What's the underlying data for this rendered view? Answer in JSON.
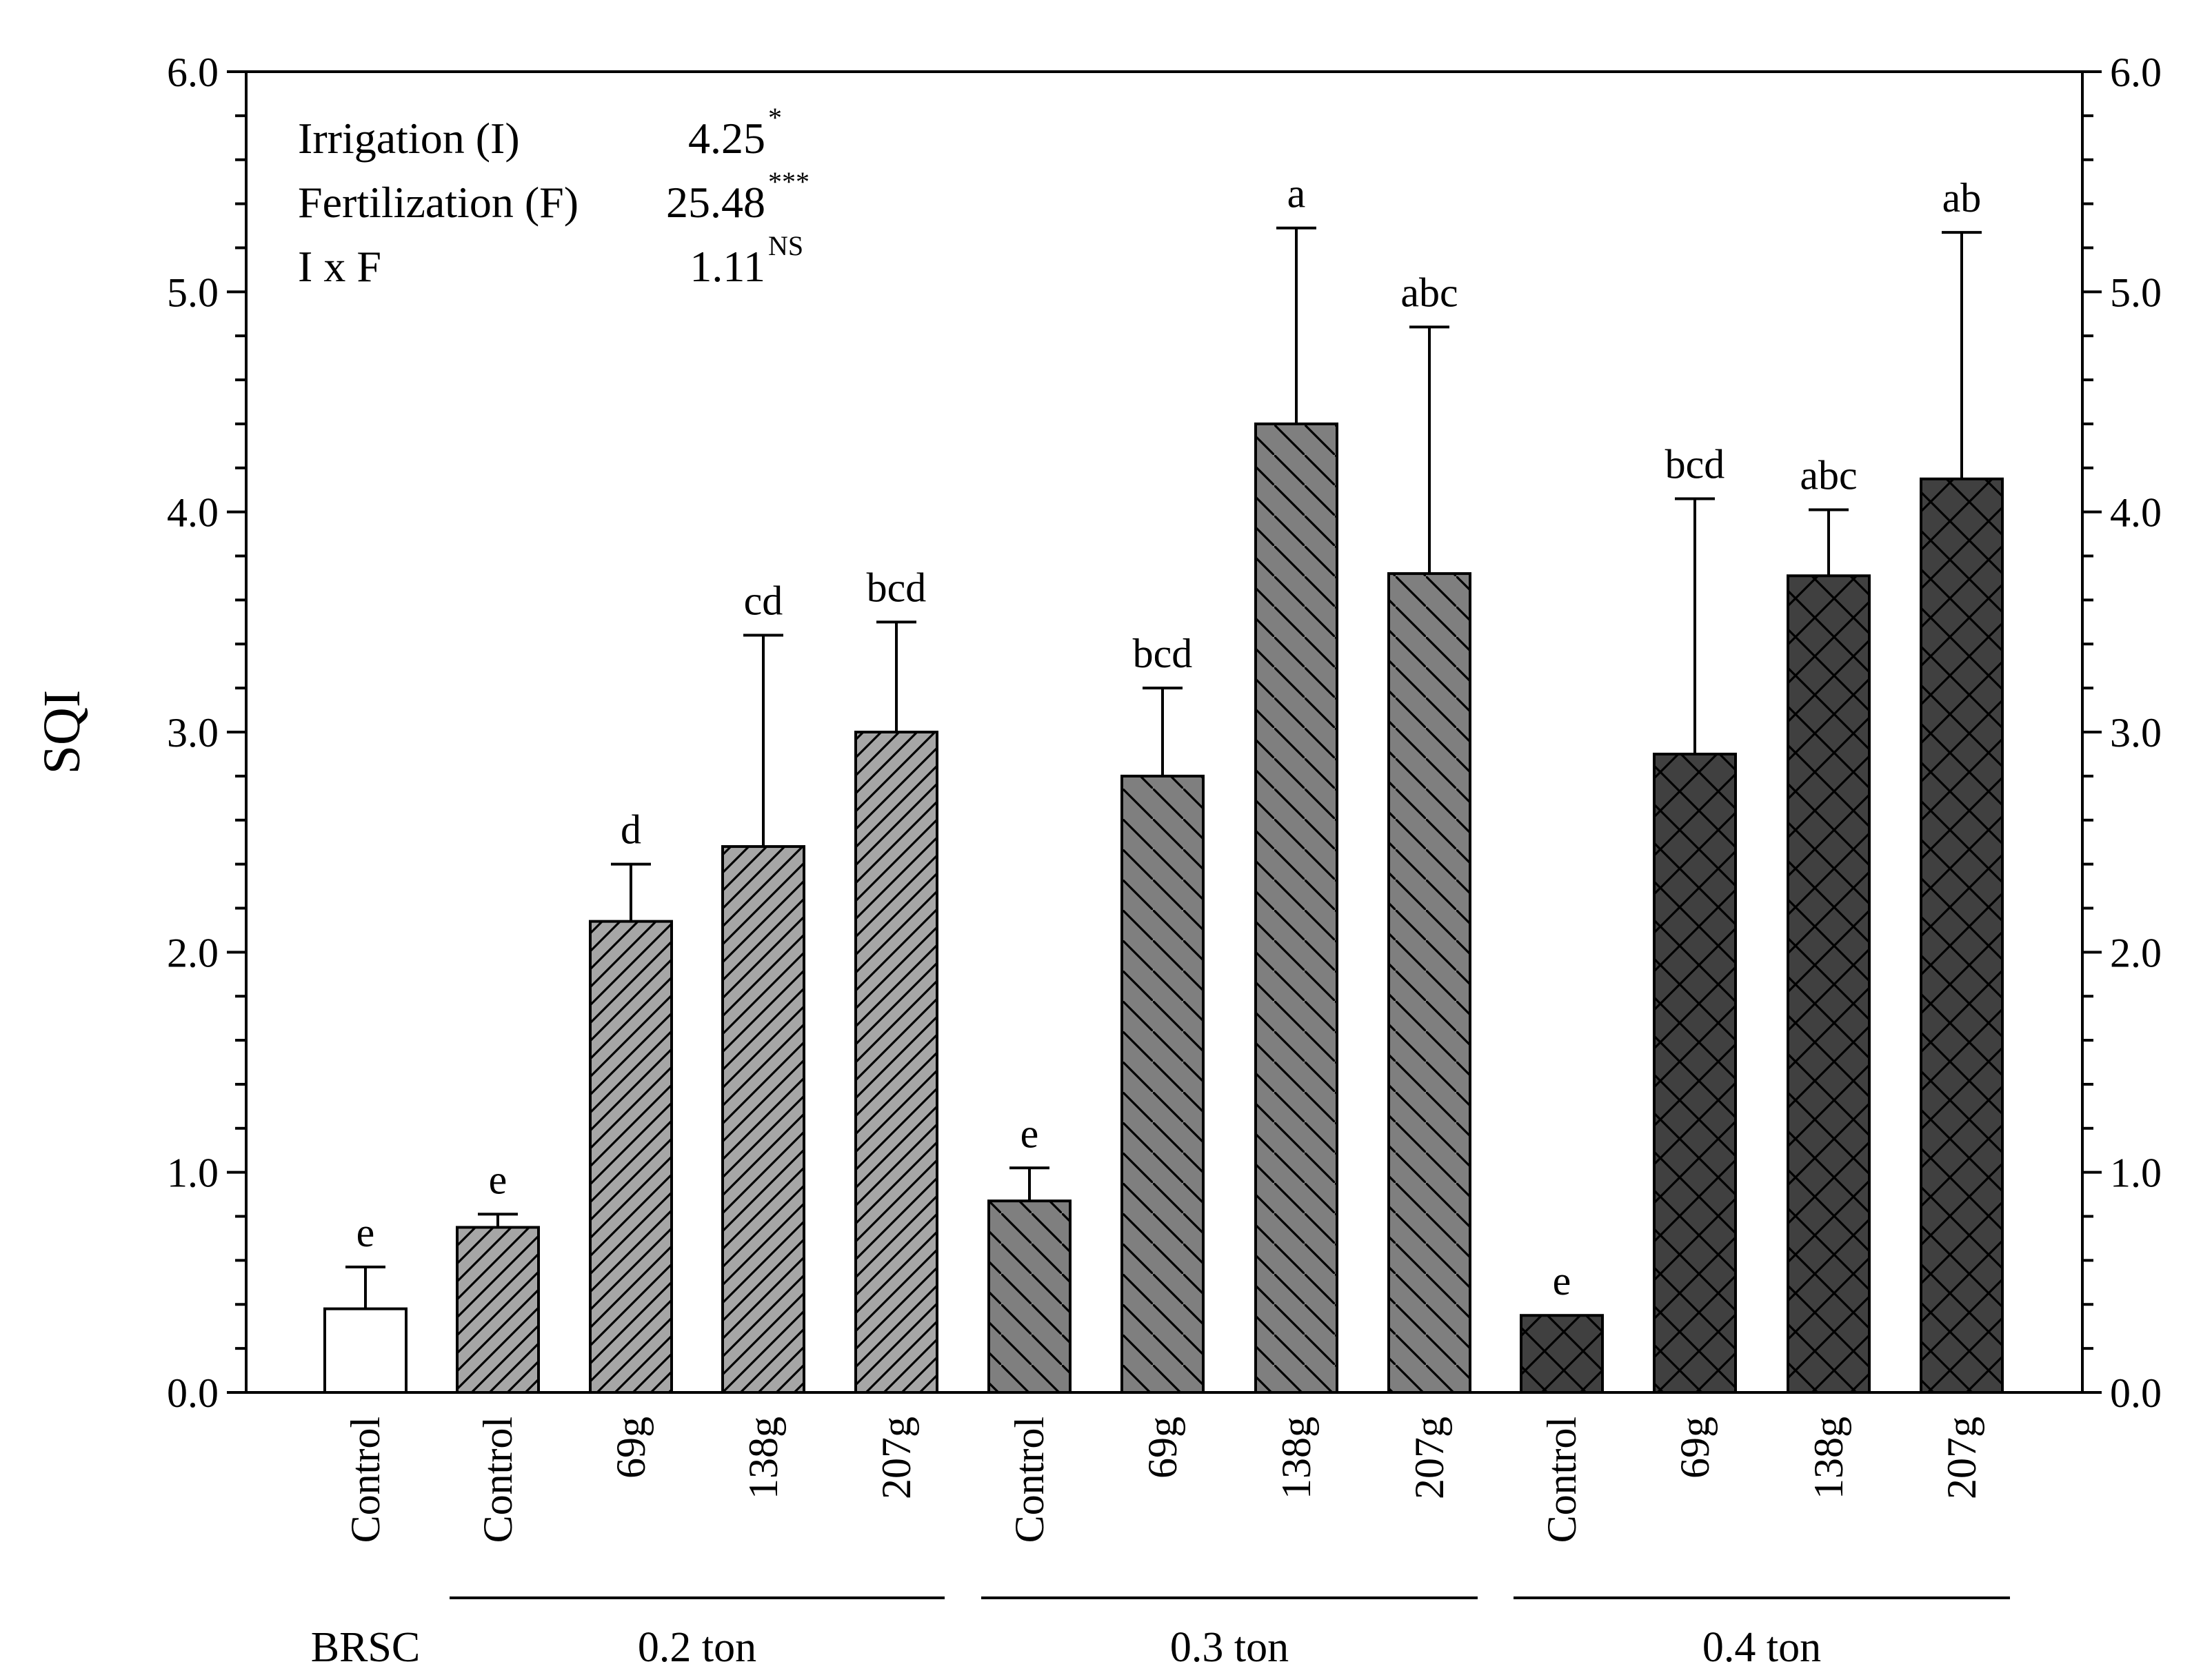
{
  "chart_data": {
    "type": "bar",
    "ylabel": "SQI",
    "ylim": [
      0,
      6
    ],
    "yticks": [
      "0.0",
      "1.0",
      "2.0",
      "3.0",
      "4.0",
      "5.0",
      "6.0"
    ],
    "right_axis_mirrored": true,
    "grid": false,
    "bars": [
      {
        "category": "Control",
        "group": "BRSC",
        "value": 0.38,
        "error": 0.19,
        "letter": "e",
        "fill": "#ffffff",
        "pattern": "none"
      },
      {
        "category": "Control",
        "group": "0.2 ton",
        "value": 0.75,
        "error": 0.06,
        "letter": "e",
        "fill": "#a6a6a6",
        "pattern": "fwd"
      },
      {
        "category": "69g",
        "group": "0.2 ton",
        "value": 2.14,
        "error": 0.26,
        "letter": "d",
        "fill": "#a6a6a6",
        "pattern": "fwd"
      },
      {
        "category": "138g",
        "group": "0.2 ton",
        "value": 2.48,
        "error": 0.96,
        "letter": "cd",
        "fill": "#a6a6a6",
        "pattern": "fwd"
      },
      {
        "category": "207g",
        "group": "0.2 ton",
        "value": 3.0,
        "error": 0.5,
        "letter": "bcd",
        "fill": "#a6a6a6",
        "pattern": "fwd"
      },
      {
        "category": "Control",
        "group": "0.3 ton",
        "value": 0.87,
        "error": 0.15,
        "letter": "e",
        "fill": "#7f7f7f",
        "pattern": "back"
      },
      {
        "category": "69g",
        "group": "0.3 ton",
        "value": 2.8,
        "error": 0.4,
        "letter": "bcd",
        "fill": "#7f7f7f",
        "pattern": "back"
      },
      {
        "category": "138g",
        "group": "0.3 ton",
        "value": 4.4,
        "error": 0.89,
        "letter": "a",
        "fill": "#7f7f7f",
        "pattern": "back"
      },
      {
        "category": "207g",
        "group": "0.3 ton",
        "value": 3.72,
        "error": 1.12,
        "letter": "abc",
        "fill": "#7f7f7f",
        "pattern": "back"
      },
      {
        "category": "Control",
        "group": "0.4 ton",
        "value": 0.35,
        "error": 0.0,
        "letter": "e",
        "fill": "#404040",
        "pattern": "cross"
      },
      {
        "category": "69g",
        "group": "0.4 ton",
        "value": 2.9,
        "error": 1.16,
        "letter": "bcd",
        "fill": "#404040",
        "pattern": "cross"
      },
      {
        "category": "138g",
        "group": "0.4 ton",
        "value": 3.71,
        "error": 0.3,
        "letter": "abc",
        "fill": "#404040",
        "pattern": "cross"
      },
      {
        "category": "207g",
        "group": "0.4 ton",
        "value": 4.15,
        "error": 1.12,
        "letter": "ab",
        "fill": "#404040",
        "pattern": "cross"
      }
    ],
    "groups": [
      {
        "label": "BRSC",
        "start": 0,
        "end": 0,
        "underline": false
      },
      {
        "label": "0.2 ton",
        "start": 1,
        "end": 4,
        "underline": true
      },
      {
        "label": "0.3 ton",
        "start": 5,
        "end": 8,
        "underline": true
      },
      {
        "label": "0.4 ton",
        "start": 9,
        "end": 12,
        "underline": true
      }
    ],
    "annotations": [
      {
        "label": "Irrigation (I)",
        "value": "4.25",
        "sup": "*"
      },
      {
        "label": "Fertilization (F)",
        "value": "25.48",
        "sup": "***"
      },
      {
        "label": "I x F",
        "value": "1.11",
        "sup": "NS"
      }
    ]
  }
}
